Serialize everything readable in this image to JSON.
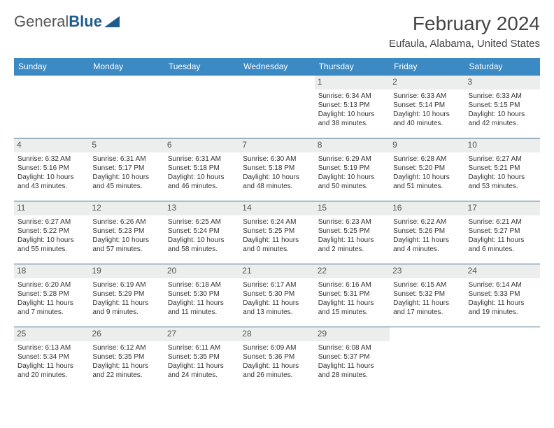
{
  "logo": {
    "text1": "General",
    "text2": "Blue"
  },
  "title": "February 2024",
  "location": "Eufaula, Alabama, United States",
  "colors": {
    "header_bg": "#3b8ac4",
    "header_text": "#ffffff",
    "daynum_bg": "#eceded",
    "border": "#3b6a8f",
    "logo_accent": "#1f5c8b"
  },
  "weekdays": [
    "Sunday",
    "Monday",
    "Tuesday",
    "Wednesday",
    "Thursday",
    "Friday",
    "Saturday"
  ],
  "weeks": [
    [
      null,
      null,
      null,
      null,
      {
        "d": "1",
        "sr": "6:34 AM",
        "ss": "5:13 PM",
        "dl": "10 hours and 38 minutes."
      },
      {
        "d": "2",
        "sr": "6:33 AM",
        "ss": "5:14 PM",
        "dl": "10 hours and 40 minutes."
      },
      {
        "d": "3",
        "sr": "6:33 AM",
        "ss": "5:15 PM",
        "dl": "10 hours and 42 minutes."
      }
    ],
    [
      {
        "d": "4",
        "sr": "6:32 AM",
        "ss": "5:16 PM",
        "dl": "10 hours and 43 minutes."
      },
      {
        "d": "5",
        "sr": "6:31 AM",
        "ss": "5:17 PM",
        "dl": "10 hours and 45 minutes."
      },
      {
        "d": "6",
        "sr": "6:31 AM",
        "ss": "5:18 PM",
        "dl": "10 hours and 46 minutes."
      },
      {
        "d": "7",
        "sr": "6:30 AM",
        "ss": "5:18 PM",
        "dl": "10 hours and 48 minutes."
      },
      {
        "d": "8",
        "sr": "6:29 AM",
        "ss": "5:19 PM",
        "dl": "10 hours and 50 minutes."
      },
      {
        "d": "9",
        "sr": "6:28 AM",
        "ss": "5:20 PM",
        "dl": "10 hours and 51 minutes."
      },
      {
        "d": "10",
        "sr": "6:27 AM",
        "ss": "5:21 PM",
        "dl": "10 hours and 53 minutes."
      }
    ],
    [
      {
        "d": "11",
        "sr": "6:27 AM",
        "ss": "5:22 PM",
        "dl": "10 hours and 55 minutes."
      },
      {
        "d": "12",
        "sr": "6:26 AM",
        "ss": "5:23 PM",
        "dl": "10 hours and 57 minutes."
      },
      {
        "d": "13",
        "sr": "6:25 AM",
        "ss": "5:24 PM",
        "dl": "10 hours and 58 minutes."
      },
      {
        "d": "14",
        "sr": "6:24 AM",
        "ss": "5:25 PM",
        "dl": "11 hours and 0 minutes."
      },
      {
        "d": "15",
        "sr": "6:23 AM",
        "ss": "5:25 PM",
        "dl": "11 hours and 2 minutes."
      },
      {
        "d": "16",
        "sr": "6:22 AM",
        "ss": "5:26 PM",
        "dl": "11 hours and 4 minutes."
      },
      {
        "d": "17",
        "sr": "6:21 AM",
        "ss": "5:27 PM",
        "dl": "11 hours and 6 minutes."
      }
    ],
    [
      {
        "d": "18",
        "sr": "6:20 AM",
        "ss": "5:28 PM",
        "dl": "11 hours and 7 minutes."
      },
      {
        "d": "19",
        "sr": "6:19 AM",
        "ss": "5:29 PM",
        "dl": "11 hours and 9 minutes."
      },
      {
        "d": "20",
        "sr": "6:18 AM",
        "ss": "5:30 PM",
        "dl": "11 hours and 11 minutes."
      },
      {
        "d": "21",
        "sr": "6:17 AM",
        "ss": "5:30 PM",
        "dl": "11 hours and 13 minutes."
      },
      {
        "d": "22",
        "sr": "6:16 AM",
        "ss": "5:31 PM",
        "dl": "11 hours and 15 minutes."
      },
      {
        "d": "23",
        "sr": "6:15 AM",
        "ss": "5:32 PM",
        "dl": "11 hours and 17 minutes."
      },
      {
        "d": "24",
        "sr": "6:14 AM",
        "ss": "5:33 PM",
        "dl": "11 hours and 19 minutes."
      }
    ],
    [
      {
        "d": "25",
        "sr": "6:13 AM",
        "ss": "5:34 PM",
        "dl": "11 hours and 20 minutes."
      },
      {
        "d": "26",
        "sr": "6:12 AM",
        "ss": "5:35 PM",
        "dl": "11 hours and 22 minutes."
      },
      {
        "d": "27",
        "sr": "6:11 AM",
        "ss": "5:35 PM",
        "dl": "11 hours and 24 minutes."
      },
      {
        "d": "28",
        "sr": "6:09 AM",
        "ss": "5:36 PM",
        "dl": "11 hours and 26 minutes."
      },
      {
        "d": "29",
        "sr": "6:08 AM",
        "ss": "5:37 PM",
        "dl": "11 hours and 28 minutes."
      },
      null,
      null
    ]
  ]
}
